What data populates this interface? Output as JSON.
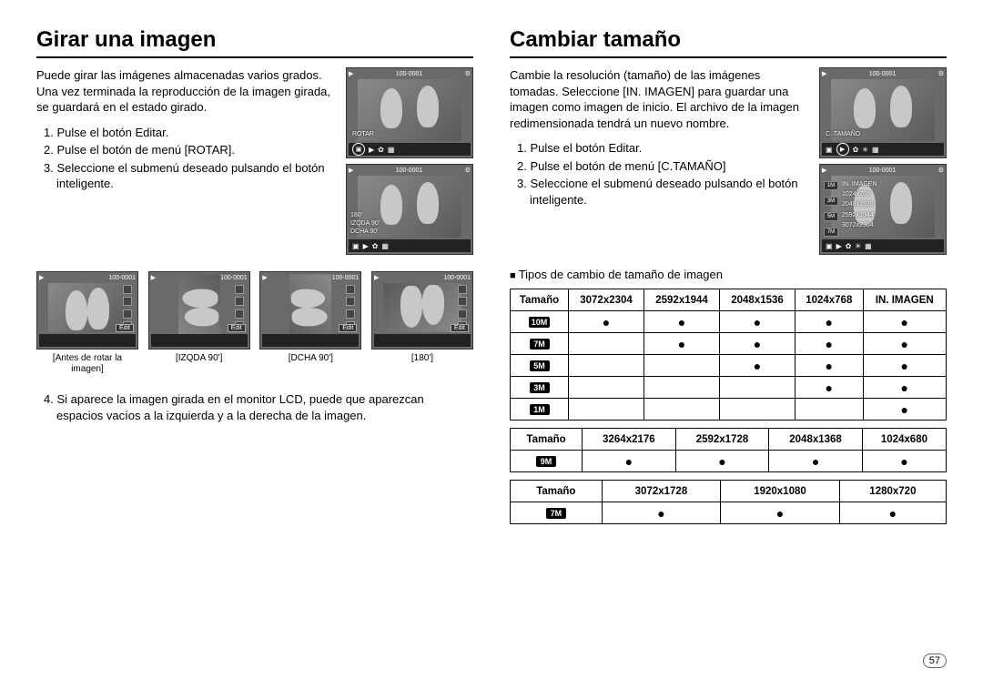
{
  "page_number": "57",
  "left": {
    "heading": "Girar una imagen",
    "paragraph": "Puede girar las imágenes almacenadas varios grados. Una vez terminada la reproducción de la imagen girada, se guardará en el estado girado.",
    "steps": [
      "1. Pulse el botón Editar.",
      "2. Pulse el botón de menú [ROTAR].",
      "3. Seleccione el submenú deseado pulsando el botón inteligente."
    ],
    "note": "4. Si aparece la imagen girada en el monitor LCD, puede que aparezcan espacios vacíos a la izquierda y a la derecha de la imagen.",
    "screen_file_id": "100-0001",
    "screen_rotate_label": "ROTAR",
    "rotate_menu": [
      "180'",
      "IZQDA 90'",
      "DCHA 90'"
    ],
    "edit_label": "Edit",
    "thumbs": [
      {
        "caption_l1": "[Antes de rotar la",
        "caption_l2": "imagen]"
      },
      {
        "caption_l1": "[IZQDA 90']",
        "caption_l2": ""
      },
      {
        "caption_l1": "[DCHA 90']",
        "caption_l2": ""
      },
      {
        "caption_l1": "[180']",
        "caption_l2": ""
      }
    ]
  },
  "right": {
    "heading": "Cambiar tamaño",
    "paragraph": "Cambie la resolución (tamaño) de las imágenes tomadas. Seleccione [IN. IMAGEN] para guardar una imagen como imagen de inicio. El archivo de la imagen redimensionada tendrá un nuevo nombre.",
    "steps": [
      "1. Pulse el botón Editar.",
      "2. Pulse el botón de menú [C.TAMAÑO]",
      "3. Seleccione el submenú deseado pulsando el botón inteligente."
    ],
    "screen_file_id": "100-0001",
    "screen_resize_label": "C. TAMAÑO",
    "size_menu_top": "IN. IMAGEN",
    "size_menu": [
      "1024x768",
      "2048x1536",
      "2592x1944",
      "3072x2304"
    ],
    "size_badges_side": [
      "1M",
      "3M",
      "5M",
      "7M"
    ],
    "subheading": "Tipos de cambio de tamaño de imagen",
    "table1": {
      "header": [
        "Tamaño",
        "3072x2304",
        "2592x1944",
        "2048x1536",
        "1024x768",
        "IN. IMAGEN"
      ],
      "rows": [
        {
          "badge": "10M",
          "cells": [
            "●",
            "●",
            "●",
            "●",
            "●"
          ]
        },
        {
          "badge": "7M",
          "cells": [
            "",
            "●",
            "●",
            "●",
            "●"
          ]
        },
        {
          "badge": "5M",
          "cells": [
            "",
            "",
            "●",
            "●",
            "●"
          ]
        },
        {
          "badge": "3M",
          "cells": [
            "",
            "",
            "",
            "●",
            "●"
          ]
        },
        {
          "badge": "1M",
          "cells": [
            "",
            "",
            "",
            "",
            "●"
          ]
        }
      ]
    },
    "table2": {
      "header": [
        "Tamaño",
        "3264x2176",
        "2592x1728",
        "2048x1368",
        "1024x680"
      ],
      "rows": [
        {
          "badge": "9M",
          "cells": [
            "●",
            "●",
            "●",
            "●"
          ]
        }
      ]
    },
    "table3": {
      "header": [
        "Tamaño",
        "3072x1728",
        "1920x1080",
        "1280x720"
      ],
      "rows": [
        {
          "badge": "7M",
          "cells": [
            "●",
            "●",
            "●"
          ]
        }
      ]
    }
  }
}
